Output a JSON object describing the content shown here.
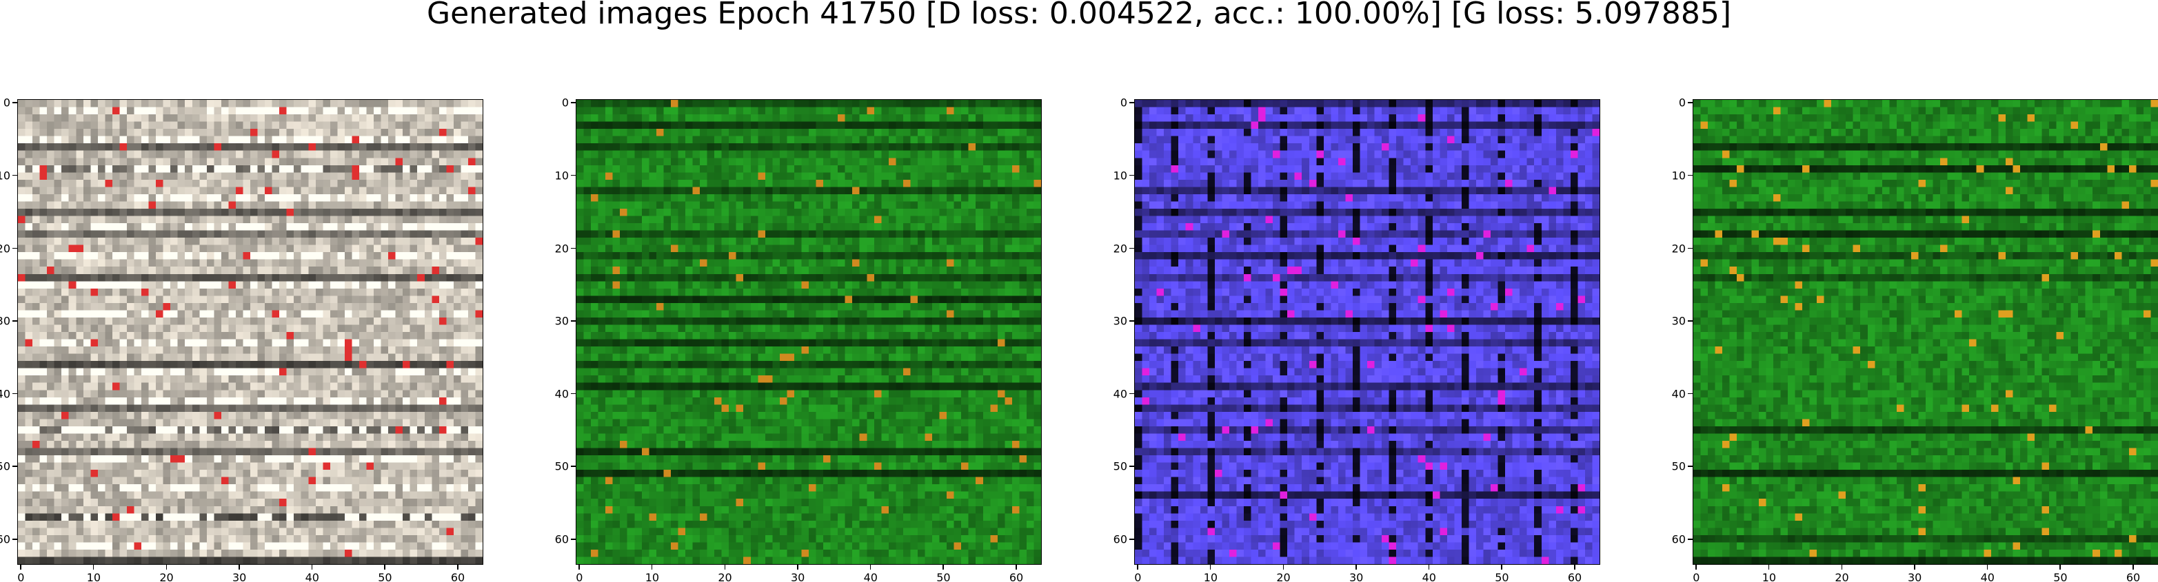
{
  "figure": {
    "title": "Generated images Epoch 41750 [D loss: 0.004522, acc.: 100.00%] [G loss: 5.097885]"
  },
  "panels": [
    {
      "image_desc": "pale beige/grey noisy sample with white horizontal bands and a red spot near center",
      "base_color": "#c9c2b6",
      "accent_color": "#e03030",
      "x_ticks": [
        "0",
        "10",
        "20",
        "30",
        "40",
        "50",
        "60"
      ],
      "y_ticks": [
        "0",
        "10",
        "20",
        "30",
        "40",
        "50",
        "60"
      ]
    },
    {
      "image_desc": "green noisy sample with darker horizontal stripes and small orange/cyan spots",
      "base_color": "#1f8a1f",
      "accent_color": "#d08a20",
      "x_ticks": [
        "0",
        "10",
        "20",
        "30",
        "40",
        "50",
        "60"
      ],
      "y_ticks": [
        "0",
        "10",
        "20",
        "30",
        "40",
        "50",
        "60"
      ]
    },
    {
      "image_desc": "blue/violet noisy sample with black maze-like vertical and horizontal lines",
      "base_color": "#5a4cf0",
      "accent_color": "#e020e0",
      "x_ticks": [
        "0",
        "10",
        "20",
        "30",
        "40",
        "50",
        "60"
      ],
      "y_ticks": [
        "0",
        "10",
        "20",
        "30",
        "40",
        "50",
        "60"
      ]
    },
    {
      "image_desc": "green noisy sample with orange/yellow blobs in upper-left and right",
      "base_color": "#1f8a1f",
      "accent_color": "#e0a020",
      "x_ticks": [
        "0",
        "10",
        "20",
        "30",
        "40",
        "50",
        "60"
      ],
      "y_ticks": [
        "0",
        "10",
        "20",
        "30",
        "40",
        "50",
        "60"
      ]
    }
  ]
}
